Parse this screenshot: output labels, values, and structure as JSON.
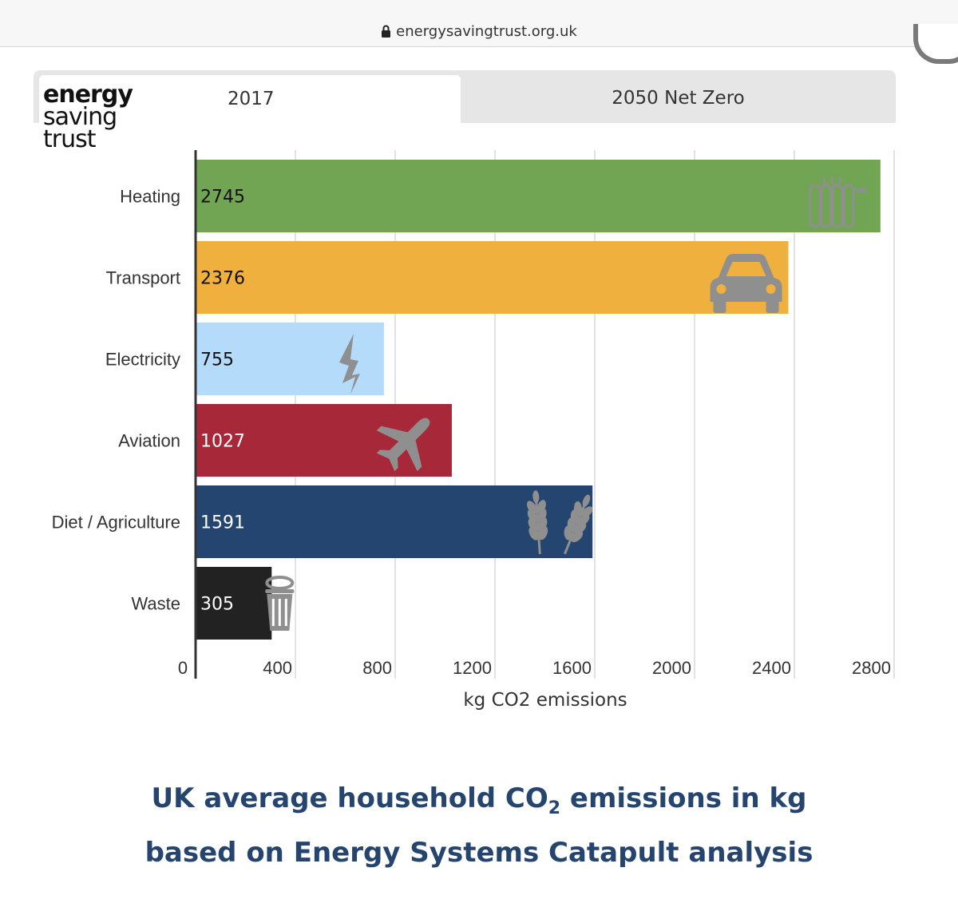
{
  "browser": {
    "url": "energysavingtrust.org.uk"
  },
  "logo": {
    "line1": "energy",
    "line2": "saving",
    "line3": "trust"
  },
  "tabs": [
    {
      "label": "2017",
      "active": true
    },
    {
      "label": "2050 Net Zero",
      "active": false
    }
  ],
  "colors": {
    "heating": "#72a553",
    "transport": "#f0b03d",
    "electricity": "#b5dbfb",
    "aviation": "#a72839",
    "diet": "#24456f",
    "waste": "#222222",
    "title": "#26456e",
    "icon": "#8f8f8f"
  },
  "chart_data": {
    "type": "bar",
    "orientation": "horizontal",
    "categories": [
      "Heating",
      "Transport",
      "Electricity",
      "Aviation",
      "Diet / Agriculture",
      "Waste"
    ],
    "values": [
      2745,
      2376,
      755,
      1027,
      1591,
      305
    ],
    "icons": [
      "radiator-icon",
      "car-icon",
      "lightning-icon",
      "airplane-icon",
      "wheat-icon",
      "trash-can-icon"
    ],
    "xlabel": "kg CO2 emissions",
    "xlim": [
      0,
      2800
    ],
    "xticks": [
      0,
      400,
      800,
      1200,
      1600,
      2000,
      2400,
      2800
    ],
    "grid": true
  },
  "caption": {
    "line1_pre": "UK average household CO",
    "line1_sub": "2",
    "line1_post": " emissions in kg",
    "line2": "based on Energy Systems Catapult analysis"
  }
}
